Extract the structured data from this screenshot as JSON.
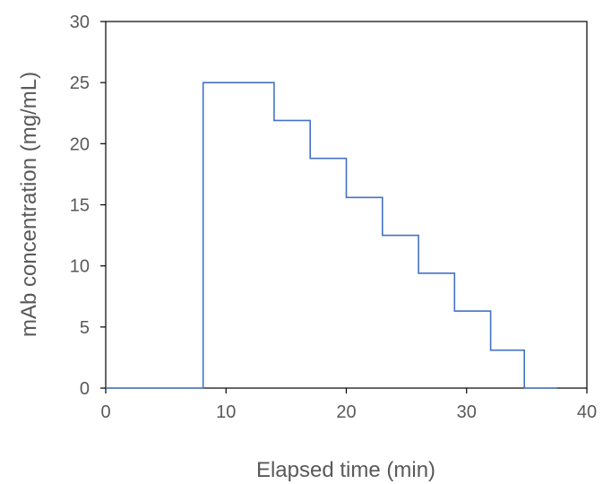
{
  "chart_data": {
    "type": "line",
    "title": "",
    "xlabel": "Elapsed time (min)",
    "ylabel": "mAb concentration (mg/mL)",
    "xlim": [
      0,
      40
    ],
    "ylim": [
      0,
      30
    ],
    "xticks": [
      0,
      10,
      20,
      30,
      40
    ],
    "yticks": [
      0,
      5,
      10,
      15,
      20,
      25,
      30
    ],
    "xtick_labels": [
      "0",
      "10",
      "20",
      "30",
      "40"
    ],
    "ytick_labels": [
      "0",
      "5",
      "10",
      "15",
      "20",
      "25",
      "30"
    ],
    "grid": false,
    "legend": "none",
    "series": [
      {
        "color": "#4472C4",
        "step": true,
        "points": [
          [
            0,
            0
          ],
          [
            8.1,
            0
          ],
          [
            8.1,
            25
          ],
          [
            14,
            25
          ],
          [
            14,
            21.9
          ],
          [
            17,
            21.9
          ],
          [
            17,
            18.8
          ],
          [
            20,
            18.8
          ],
          [
            20,
            15.6
          ],
          [
            23,
            15.6
          ],
          [
            23,
            12.5
          ],
          [
            26,
            12.5
          ],
          [
            26,
            9.4
          ],
          [
            29,
            9.4
          ],
          [
            29,
            6.3
          ],
          [
            32,
            6.3
          ],
          [
            32,
            3.1
          ],
          [
            34.8,
            3.1
          ],
          [
            34.8,
            0
          ],
          [
            37.5,
            0
          ]
        ]
      }
    ]
  }
}
